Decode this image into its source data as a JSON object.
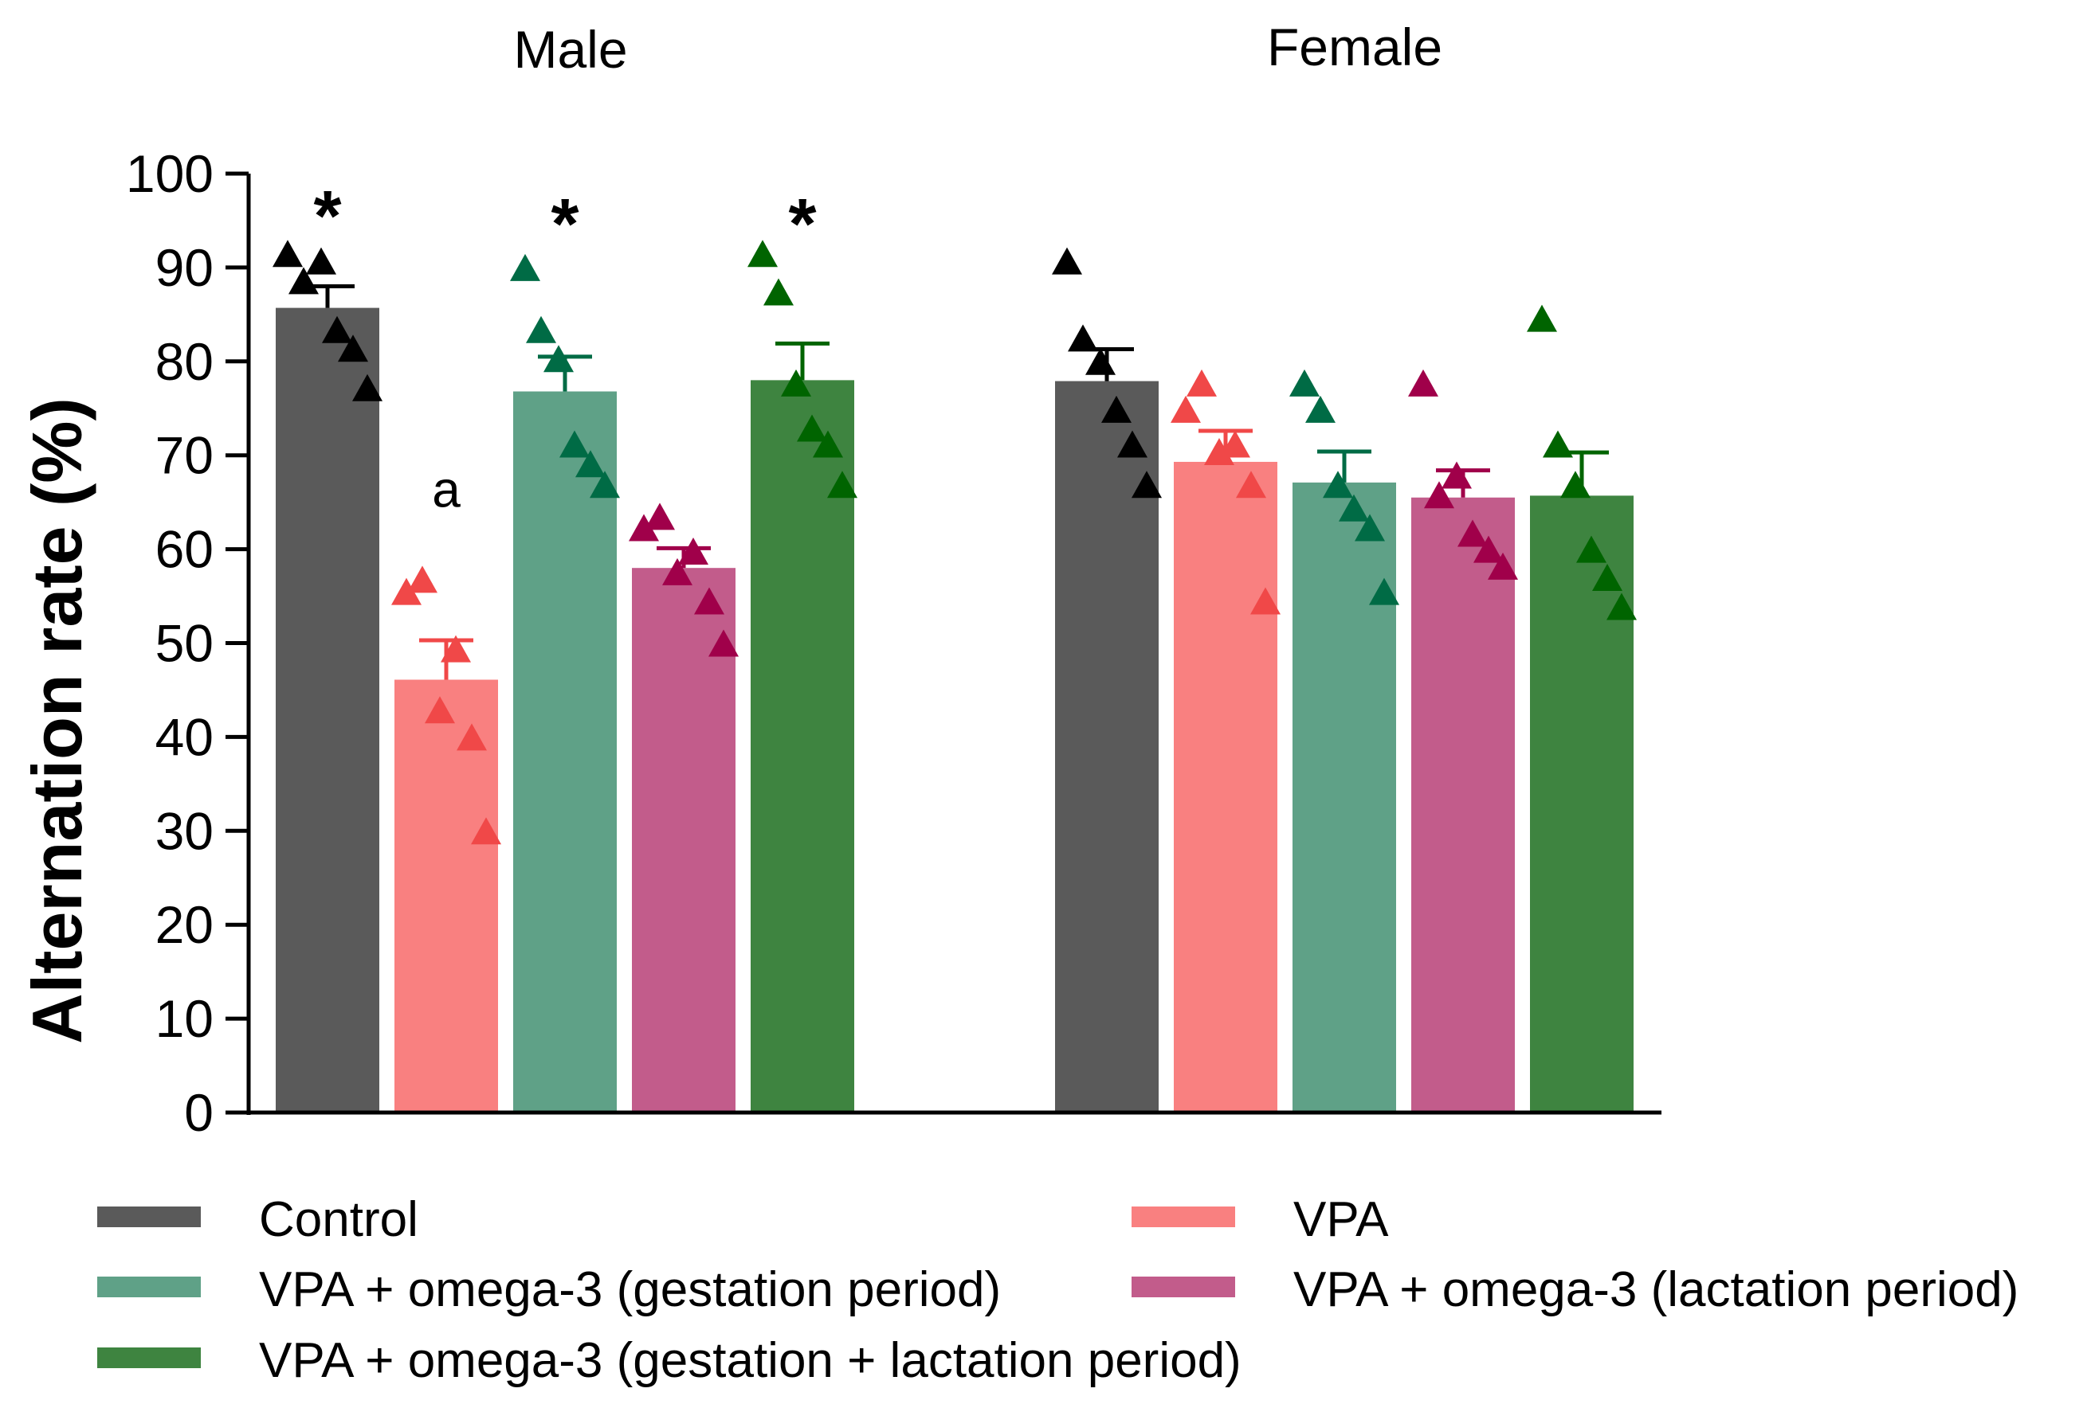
{
  "chart_data": {
    "type": "bar",
    "ylabel": "Alternation rate (%)",
    "ylim": [
      0,
      100
    ],
    "yticks": [
      0,
      10,
      20,
      30,
      40,
      50,
      60,
      70,
      80,
      90,
      100
    ],
    "groups": [
      "Male",
      "Female"
    ],
    "series": [
      {
        "name": "Control",
        "color": "#5a5a5a",
        "marker_color": "#000000",
        "means": [
          85.7,
          77.9
        ],
        "sem": [
          2.3,
          3.4
        ],
        "points": [
          [
            91.5,
            88.6,
            90.7,
            83.4,
            81.4,
            77.2
          ],
          [
            90.7,
            82.5,
            80.0,
            74.9,
            71.2,
            66.9
          ]
        ],
        "annotations": [
          "*",
          ""
        ]
      },
      {
        "name": "VPA",
        "color": "#f98080",
        "marker_color": "#f04848",
        "means": [
          46.1,
          69.3
        ],
        "sem": [
          4.2,
          3.3
        ],
        "points": [
          [
            55.5,
            56.8,
            42.9,
            49.4,
            40.0,
            30.0
          ],
          [
            74.9,
            77.7,
            70.4,
            71.2,
            66.9,
            54.5
          ]
        ],
        "annotations": [
          "a",
          ""
        ]
      },
      {
        "name": "VPA + omega-3 (gestation period)",
        "color": "#5fa187",
        "marker_color": "#006b45",
        "means": [
          76.8,
          67.1
        ],
        "sem": [
          3.7,
          3.3
        ],
        "points": [
          [
            90.0,
            83.4,
            80.3,
            71.2,
            69.1,
            66.9
          ],
          [
            77.7,
            74.9,
            66.9,
            64.4,
            62.3,
            55.5
          ]
        ],
        "annotations": [
          "*",
          ""
        ]
      },
      {
        "name": "VPA + omega-3 (lactation period)",
        "color": "#c25c8b",
        "marker_color": "#a0004a",
        "means": [
          58.0,
          65.5
        ],
        "sem": [
          2.1,
          2.9
        ],
        "points": [
          [
            62.3,
            63.5,
            57.6,
            59.8,
            54.5,
            50.0
          ],
          [
            77.7,
            65.8,
            67.9,
            61.7,
            60.0,
            58.2
          ]
        ],
        "annotations": [
          "",
          ""
        ]
      },
      {
        "name": "VPA + omega-3 (gestation + lactation period)",
        "color": "#3e8440",
        "marker_color": "#006400",
        "means": [
          78.0,
          65.7
        ],
        "sem": [
          3.9,
          4.6
        ],
        "points": [
          [
            91.5,
            87.4,
            77.7,
            72.9,
            71.2,
            66.9
          ],
          [
            84.6,
            71.2,
            66.9,
            60.0,
            57.0,
            53.9
          ]
        ],
        "annotations": [
          "*",
          ""
        ]
      }
    ]
  }
}
